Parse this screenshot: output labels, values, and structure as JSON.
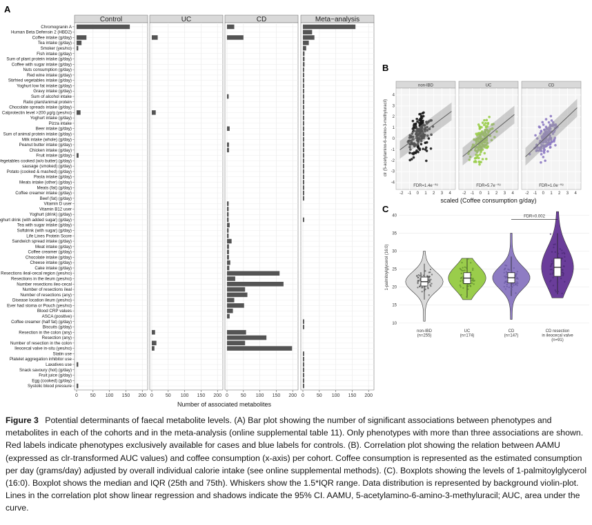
{
  "panel_labels": {
    "a": "A",
    "b": "B",
    "c": "C"
  },
  "colors": {
    "bar": "#545454",
    "red_label": "#e41a1c",
    "blue_label": "#3355bb",
    "strip_bg": "#d9d9d9",
    "grid": "#ebebeb",
    "nonibd": "#1a1a1a",
    "uc": "#9acd4b",
    "cd": "#8e7cc3",
    "cd_resection": "#6a3d9a"
  },
  "chart_data": [
    {
      "type": "bar",
      "orientation": "horizontal",
      "facets": [
        "Control",
        "UC",
        "CD",
        "Meta−analysis"
      ],
      "xlabel": "Number of associated metabolites",
      "xticks": [
        0,
        50,
        100,
        150,
        200
      ],
      "xlim": [
        0,
        210
      ],
      "grid": true,
      "categories": [
        {
          "name": "Chromogranin A",
          "color": "black",
          "values": [
            162,
            0,
            22,
            160
          ]
        },
        {
          "name": "Human Beta Defensin 2 (HBD2)",
          "color": "black",
          "values": [
            0,
            0,
            0,
            28
          ]
        },
        {
          "name": "Coffee intake (g/day)",
          "color": "black",
          "values": [
            30,
            18,
            50,
            35
          ]
        },
        {
          "name": "Tea intake (g/day)",
          "color": "black",
          "values": [
            15,
            0,
            0,
            18
          ]
        },
        {
          "name": "Smoker (yes/no)",
          "color": "black",
          "values": [
            5,
            0,
            0,
            10
          ]
        },
        {
          "name": "Fish intake (g/day)",
          "color": "black",
          "values": [
            0,
            0,
            0,
            5
          ]
        },
        {
          "name": "Sum of plant protein intake (g/day)",
          "color": "black",
          "values": [
            0,
            0,
            0,
            5
          ]
        },
        {
          "name": "Coffee with sugar intake (g/day)",
          "color": "black",
          "values": [
            0,
            0,
            0,
            5
          ]
        },
        {
          "name": "Nuts consumption (g/day)",
          "color": "black",
          "values": [
            0,
            0,
            0,
            4
          ]
        },
        {
          "name": "Red wine intake (g/day)",
          "color": "black",
          "values": [
            0,
            0,
            0,
            4
          ]
        },
        {
          "name": "Stirfried vegetables intake (g/day)",
          "color": "black",
          "values": [
            0,
            0,
            0,
            4
          ]
        },
        {
          "name": "Yoghurt low fat intake (g/day)",
          "color": "black",
          "values": [
            0,
            0,
            0,
            4
          ]
        },
        {
          "name": "Gravy intake (g/day)",
          "color": "black",
          "values": [
            0,
            0,
            0,
            4
          ]
        },
        {
          "name": "Sum of alcohol intake",
          "color": "black",
          "values": [
            0,
            0,
            5,
            4
          ]
        },
        {
          "name": "Ratio plant/animal protein",
          "color": "black",
          "values": [
            0,
            0,
            0,
            4
          ]
        },
        {
          "name": "Chocolate spreads intake (g/day)",
          "color": "black",
          "values": [
            0,
            0,
            0,
            4
          ]
        },
        {
          "name": "Calprotectin level >200 µg/g (yes/no)",
          "color": "black",
          "values": [
            12,
            12,
            0,
            4
          ]
        },
        {
          "name": "Yoghurt intake (g/day)",
          "color": "black",
          "values": [
            0,
            0,
            0,
            4
          ]
        },
        {
          "name": "Pizza intake",
          "color": "black",
          "values": [
            0,
            0,
            0,
            4
          ]
        },
        {
          "name": "Beer intake (g/day)",
          "color": "black",
          "values": [
            0,
            0,
            8,
            4
          ]
        },
        {
          "name": "Sum of animal protein intake (g/day)",
          "color": "black",
          "values": [
            0,
            0,
            0,
            4
          ]
        },
        {
          "name": "Milk intake (whole) (g/day)",
          "color": "black",
          "values": [
            0,
            0,
            0,
            4
          ]
        },
        {
          "name": "Peanut butter intake (g/day)",
          "color": "black",
          "values": [
            0,
            0,
            6,
            4
          ]
        },
        {
          "name": "Chicken intake (g/day)",
          "color": "black",
          "values": [
            0,
            0,
            6,
            4
          ]
        },
        {
          "name": "Fruit intake (g/day)",
          "color": "black",
          "values": [
            6,
            0,
            0,
            4
          ]
        },
        {
          "name": "Vegetables cooked (w/o butter) (g/day)",
          "color": "black",
          "values": [
            0,
            0,
            0,
            4
          ]
        },
        {
          "name": "sausage (smoked) (g/day)",
          "color": "black",
          "values": [
            0,
            0,
            0,
            4
          ]
        },
        {
          "name": "Potato (cooked & mashed) (g/day)",
          "color": "black",
          "values": [
            0,
            0,
            0,
            4
          ]
        },
        {
          "name": "Pasta intake (g/day)",
          "color": "black",
          "values": [
            0,
            0,
            0,
            4
          ]
        },
        {
          "name": "Meats intake (other) (g/day)",
          "color": "black",
          "values": [
            0,
            0,
            0,
            4
          ]
        },
        {
          "name": "Meats (fat) (g/day)",
          "color": "black",
          "values": [
            0,
            0,
            0,
            4
          ]
        },
        {
          "name": "Coffee creamer intake (g/day)",
          "color": "black",
          "values": [
            0,
            0,
            0,
            4
          ]
        },
        {
          "name": "Beef (fat) (g/day)",
          "color": "black",
          "values": [
            0,
            0,
            0,
            4
          ]
        },
        {
          "name": "Vitamin D user",
          "color": "black",
          "values": [
            0,
            0,
            5,
            0
          ]
        },
        {
          "name": "Vitamin B12 user",
          "color": "black",
          "values": [
            0,
            0,
            5,
            0
          ]
        },
        {
          "name": "Yoghurt (drink) (g/day)",
          "color": "black",
          "values": [
            0,
            0,
            5,
            0
          ]
        },
        {
          "name": "Yoghurt drink (with added sugar) (g/day)",
          "color": "black",
          "values": [
            0,
            0,
            5,
            4
          ]
        },
        {
          "name": "Tea with sugar intake (g/day)",
          "color": "black",
          "values": [
            0,
            0,
            8,
            0
          ]
        },
        {
          "name": "Softdrink (with sugar) (g/day)",
          "color": "black",
          "values": [
            0,
            0,
            5,
            0
          ]
        },
        {
          "name": "Life Lines Protein Score",
          "color": "black",
          "values": [
            0,
            0,
            5,
            0
          ]
        },
        {
          "name": "Sandwich spread intake (g/day)",
          "color": "black",
          "values": [
            0,
            0,
            14,
            0
          ]
        },
        {
          "name": "Meat intake (g/day)",
          "color": "black",
          "values": [
            0,
            0,
            6,
            0
          ]
        },
        {
          "name": "Coffee creamer (g/day)",
          "color": "black",
          "values": [
            0,
            0,
            6,
            0
          ]
        },
        {
          "name": "Chocolate intake (g/day)",
          "color": "black",
          "values": [
            0,
            0,
            6,
            0
          ]
        },
        {
          "name": "Cheese intake (g/day)",
          "color": "black",
          "values": [
            0,
            0,
            10,
            0
          ]
        },
        {
          "name": "Cake intake (g/day)",
          "color": "black",
          "values": [
            0,
            0,
            7,
            0
          ]
        },
        {
          "name": "Resections ileal-cecal region (yes/no)",
          "color": "red",
          "values": [
            0,
            0,
            160,
            0
          ]
        },
        {
          "name": "Resections in the ileum (yes/no)",
          "color": "red",
          "values": [
            0,
            0,
            25,
            0
          ]
        },
        {
          "name": "Number resections ileo-cecal",
          "color": "red",
          "values": [
            0,
            0,
            172,
            0
          ]
        },
        {
          "name": "Number of resections ileal",
          "color": "red",
          "values": [
            0,
            0,
            55,
            0
          ]
        },
        {
          "name": "Number of resections (any)",
          "color": "red",
          "values": [
            0,
            0,
            62,
            0
          ]
        },
        {
          "name": "Disease location ileum (yes/no)",
          "color": "red",
          "values": [
            0,
            0,
            22,
            0
          ]
        },
        {
          "name": "Ever had stoma or Pouch (yes/no)",
          "color": "red",
          "values": [
            0,
            0,
            52,
            0
          ]
        },
        {
          "name": "Blood CRP values",
          "color": "red",
          "values": [
            0,
            0,
            18,
            0
          ]
        },
        {
          "name": "ASCA (positive)",
          "color": "red",
          "values": [
            0,
            0,
            8,
            0
          ]
        },
        {
          "name": "Coffee creamer (half fat) (g/day)",
          "color": "black",
          "values": [
            0,
            0,
            0,
            4
          ]
        },
        {
          "name": "Biscuits (g/day)",
          "color": "black",
          "values": [
            0,
            0,
            0,
            4
          ]
        },
        {
          "name": "Resection in the colon (any)",
          "color": "red",
          "values": [
            0,
            10,
            58,
            0
          ]
        },
        {
          "name": "Resection (any)",
          "color": "red",
          "values": [
            0,
            0,
            120,
            0
          ]
        },
        {
          "name": "Number of resection in the colon",
          "color": "red",
          "values": [
            0,
            14,
            55,
            0
          ]
        },
        {
          "name": "Ileocecal valve in-situ (yes/no)",
          "color": "red",
          "values": [
            0,
            8,
            198,
            0
          ]
        },
        {
          "name": "Statin use",
          "color": "black",
          "values": [
            0,
            0,
            0,
            4
          ]
        },
        {
          "name": "Platelet aggregation inhibitor use",
          "color": "black",
          "values": [
            0,
            0,
            0,
            4
          ]
        },
        {
          "name": "Laxatives use",
          "color": "black",
          "values": [
            5,
            0,
            0,
            4
          ]
        },
        {
          "name": "Snack savoury (hot) (g/day)",
          "color": "black",
          "values": [
            0,
            0,
            0,
            4
          ]
        },
        {
          "name": "Fruit juice (g/day)",
          "color": "black",
          "values": [
            0,
            0,
            0,
            4
          ]
        },
        {
          "name": "Egg (cooked) (g/day)",
          "color": "black",
          "values": [
            0,
            0,
            0,
            4
          ]
        },
        {
          "name": "Systolic blood pressure",
          "color": "blue",
          "values": [
            5,
            0,
            0,
            4
          ]
        }
      ]
    },
    {
      "type": "scatter",
      "facets": [
        "non-IBD",
        "UC",
        "CD"
      ],
      "xlabel": "scaled (Coffee consumption g/day)",
      "ylabel": "clr (5-acetylamino-6-amino-3-methyluracil)",
      "xticks": [
        -2,
        -1,
        0,
        1,
        2,
        3,
        4
      ],
      "yticks": [
        -4,
        -3,
        -2,
        -1,
        0,
        1,
        2,
        3,
        4
      ],
      "series": [
        {
          "name": "non-IBD",
          "annotation": "FDR=1.4e⁻⁰⁸",
          "slope": 0.55,
          "intercept": 0.2,
          "n": 255
        },
        {
          "name": "UC",
          "annotation": "FDR=5.7e⁻⁰⁸",
          "slope": 0.6,
          "intercept": -0.3,
          "n": 174
        },
        {
          "name": "CD",
          "annotation": "FDR=1.0e⁻⁰⁸",
          "slope": 0.7,
          "intercept": -0.1,
          "n": 147
        }
      ],
      "grid": true
    },
    {
      "type": "boxplot",
      "ylabel": "1-palmitoylglycerol (16:0)",
      "yticks": [
        10,
        15,
        20,
        25,
        30,
        35,
        40
      ],
      "ylim": [
        9,
        42
      ],
      "categories": [
        {
          "label": "non-IBD",
          "n_label": "(n=255)",
          "median": 21.5,
          "q1": 20.3,
          "q3": 22.8,
          "whisker_low": 16.5,
          "whisker_high": 26.5,
          "min": 10.5,
          "max": 30
        },
        {
          "label": "UC",
          "n_label": "(n=174)",
          "median": 22.5,
          "q1": 21,
          "q3": 24,
          "whisker_low": 17,
          "whisker_high": 28,
          "min": 16.5,
          "max": 28
        },
        {
          "label": "CD",
          "n_label": "(n=147)",
          "median": 22.6,
          "q1": 21.2,
          "q3": 24,
          "whisker_low": 17.5,
          "whisker_high": 28.5,
          "min": 11,
          "max": 35
        },
        {
          "label": "CD resection\nin ileocecal valve",
          "n_label": "(n=91)",
          "median": 25.5,
          "q1": 23,
          "q3": 28,
          "whisker_low": 18,
          "whisker_high": 35,
          "min": 17,
          "max": 41
        }
      ],
      "annotation": {
        "text": "FDR=0.002",
        "between": [
          "CD",
          "CD resection\nin ileocecal valve"
        ]
      },
      "grid": true
    }
  ],
  "caption": {
    "figure_label": "Figure 3",
    "text": "Potential determinants of faecal metabolite levels. (A) Bar plot showing the number of significant associations between phenotypes and metabolites in each of the cohorts and in the meta-analysis (online supplemental table 11). Only phenotypes with more than three associations are shown. Red labels indicate phenotypes exclusively available for cases and blue labels for controls. (B). Correlation plot showing the relation between AAMU (expressed as clr-transformed AUC values) and coffee consumption (x-axis) per cohort. Coffee consumption is represented as the estimated consumption per day (grams/day) adjusted by overall individual calorie intake (see online supplemental methods). (C). Boxplots showing the levels of 1-palmitoylglycerol (16:0). Boxplot shows the median and IQR (25th and 75th). Whiskers show the 1.5*IQR range. Data distribution is represented by background violin-plot. Lines in the correlation plot show linear regression and shadows indicate the 95% CI. AAMU, 5-acetylamino-6-amino-3-methyluracil; AUC, area under the curve."
  }
}
